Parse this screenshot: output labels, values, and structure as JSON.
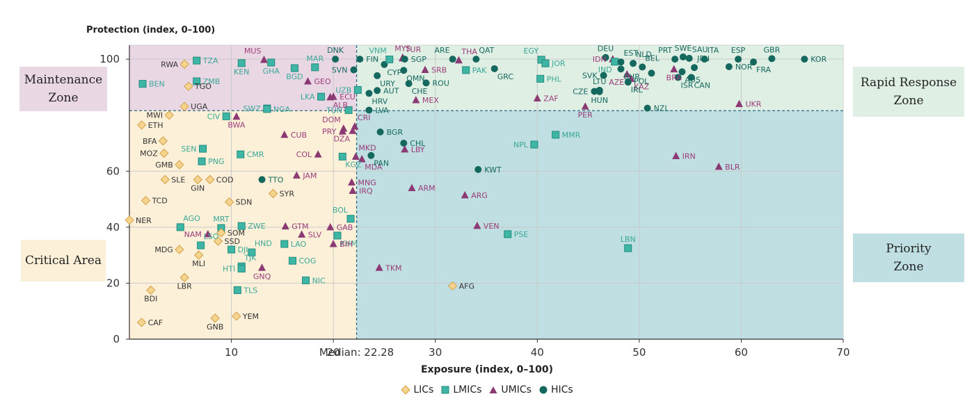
{
  "chart_data": {
    "type": "scatter",
    "xlabel": "Exposure (index, 0–100)",
    "ylabel": "Protection (index, 0–100)",
    "xlim": [
      0,
      70
    ],
    "ylim": [
      0,
      105
    ],
    "x_ticks": [
      10,
      20,
      30,
      40,
      50,
      60,
      70
    ],
    "y_ticks": [
      0,
      20,
      40,
      60,
      100
    ],
    "median_x": 22.28,
    "median_label": "Median: 22.28",
    "horizontal_threshold": 81.6,
    "zones": [
      {
        "id": "maint",
        "label": "Maintenance\nZone",
        "color": "#ead7e4"
      },
      {
        "id": "rapid",
        "label": "Rapid Response\nZone",
        "color": "#e0efe4"
      },
      {
        "id": "crit",
        "label": "Critical Area",
        "color": "#fdf0d8"
      },
      {
        "id": "prio",
        "label": "Priority\nZone",
        "color": "#bfdfe2"
      }
    ],
    "groups": [
      {
        "key": "LIC",
        "name": "LICs",
        "marker": "diamond",
        "fill": "#f5d58e",
        "stroke": "#d3a04a",
        "text": "#333333"
      },
      {
        "key": "LMIC",
        "name": "LMICs",
        "marker": "square",
        "fill": "#3fb5a5",
        "stroke": "#1f8c7e",
        "text": "#3aa898"
      },
      {
        "key": "UMIC",
        "name": "UMICs",
        "marker": "triangle",
        "fill": "#8c3a73",
        "stroke": "#8c3a73",
        "text": "#9a3c7a"
      },
      {
        "key": "HIC",
        "name": "HICs",
        "marker": "circle",
        "fill": "#14685e",
        "stroke": "#14685e",
        "text": "#14685e"
      }
    ],
    "points": [
      {
        "code": "RWA",
        "g": "LIC",
        "x": 5.4,
        "y": 98.2,
        "lp": "l"
      },
      {
        "code": "TZA",
        "g": "LMIC",
        "x": 6.6,
        "y": 99.5,
        "lp": "r"
      },
      {
        "code": "BEN",
        "g": "LMIC",
        "x": 1.3,
        "y": 91.2,
        "lp": "r"
      },
      {
        "code": "ZMB",
        "g": "LMIC",
        "x": 6.6,
        "y": 92.1,
        "lp": "r"
      },
      {
        "code": "TGO",
        "g": "LIC",
        "x": 5.8,
        "y": 90.3,
        "lp": "r"
      },
      {
        "code": "UGA",
        "g": "LIC",
        "x": 5.4,
        "y": 83.1,
        "lp": "r"
      },
      {
        "code": "MWI",
        "g": "LIC",
        "x": 3.9,
        "y": 80.0,
        "lp": "l"
      },
      {
        "code": "MUS",
        "g": "UMIC",
        "x": 13.2,
        "y": 99.8,
        "lp": "tl"
      },
      {
        "code": "KEN",
        "g": "LMIC",
        "x": 11.0,
        "y": 98.6,
        "lp": "b"
      },
      {
        "code": "GHA",
        "g": "LMIC",
        "x": 13.9,
        "y": 98.8,
        "lp": "b"
      },
      {
        "code": "BGD",
        "g": "LMIC",
        "x": 16.2,
        "y": 96.8,
        "lp": "b"
      },
      {
        "code": "MAR",
        "g": "LMIC",
        "x": 18.2,
        "y": 97.1,
        "lp": "t"
      },
      {
        "code": "GEO",
        "g": "UMIC",
        "x": 17.5,
        "y": 92.1,
        "lp": "r"
      },
      {
        "code": "SWZ",
        "g": "LMIC",
        "x": 13.5,
        "y": 82.4,
        "lp": "l"
      },
      {
        "code": "NGA",
        "g": "LMIC",
        "x": 13.5,
        "y": 82.2,
        "lp": "r"
      },
      {
        "code": "LKA",
        "g": "LMIC",
        "x": 18.8,
        "y": 86.6,
        "lp": "l"
      },
      {
        "code": "ECU",
        "g": "UMIC",
        "x": 20.0,
        "y": 86.6,
        "lp": "r"
      },
      {
        "code": "ALB",
        "g": "UMIC",
        "x": 19.7,
        "y": 86.4,
        "lp": "br"
      },
      {
        "code": "DNK",
        "g": "HIC",
        "x": 20.2,
        "y": 100.0,
        "lp": "t"
      },
      {
        "code": "SVN",
        "g": "HIC",
        "x": 22.0,
        "y": 96.2,
        "lp": "l"
      },
      {
        "code": "UZB",
        "g": "LMIC",
        "x": 22.4,
        "y": 89.0,
        "lp": "l"
      },
      {
        "code": "FIN",
        "g": "HIC",
        "x": 22.6,
        "y": 100.0,
        "lp": "r"
      },
      {
        "code": "TUN",
        "g": "LMIC",
        "x": 21.5,
        "y": 81.8,
        "lp": "l"
      },
      {
        "code": "LVA",
        "g": "HIC",
        "x": 23.5,
        "y": 81.8,
        "lp": "r"
      },
      {
        "code": "HRV",
        "g": "HIC",
        "x": 23.5,
        "y": 87.8,
        "lp": "br"
      },
      {
        "code": "AUT",
        "g": "HIC",
        "x": 24.3,
        "y": 88.8,
        "lp": "r"
      },
      {
        "code": "URY",
        "g": "HIC",
        "x": 24.3,
        "y": 94.1,
        "lp": "br"
      },
      {
        "code": "CYP",
        "g": "HIC",
        "x": 25.0,
        "y": 98.1,
        "lp": "br"
      },
      {
        "code": "VNM",
        "g": "LMIC",
        "x": 25.5,
        "y": 99.9,
        "lp": "tl"
      },
      {
        "code": "MYS",
        "g": "UMIC",
        "x": 26.8,
        "y": 100.6,
        "lp": "t"
      },
      {
        "code": "TUR",
        "g": "UMIC",
        "x": 26.8,
        "y": 100.3,
        "lp": "tr"
      },
      {
        "code": "SGP",
        "g": "HIC",
        "x": 27.0,
        "y": 100.0,
        "lp": "r"
      },
      {
        "code": "OMN",
        "g": "HIC",
        "x": 26.9,
        "y": 96.0,
        "lp": "br"
      },
      {
        "code": "CHE",
        "g": "HIC",
        "x": 27.4,
        "y": 91.3,
        "lp": "br"
      },
      {
        "code": "ROU",
        "g": "HIC",
        "x": 29.1,
        "y": 91.5,
        "lp": "r"
      },
      {
        "code": "SRB",
        "g": "UMIC",
        "x": 29.0,
        "y": 96.2,
        "lp": "r"
      },
      {
        "code": "MEX",
        "g": "UMIC",
        "x": 28.1,
        "y": 85.4,
        "lp": "r"
      },
      {
        "code": "ARE",
        "g": "HIC",
        "x": 31.7,
        "y": 100.0,
        "lp": "tl"
      },
      {
        "code": "THA",
        "g": "UMIC",
        "x": 32.3,
        "y": 99.6,
        "lp": "tr"
      },
      {
        "code": "QAT",
        "g": "HIC",
        "x": 34.0,
        "y": 100.0,
        "lp": "tr"
      },
      {
        "code": "PAK",
        "g": "LMIC",
        "x": 33.0,
        "y": 96.1,
        "lp": "r"
      },
      {
        "code": "GRC",
        "g": "HIC",
        "x": 35.8,
        "y": 96.6,
        "lp": "br"
      },
      {
        "code": "EGY",
        "g": "LMIC",
        "x": 40.4,
        "y": 99.8,
        "lp": "tl"
      },
      {
        "code": "JOR",
        "g": "LMIC",
        "x": 40.8,
        "y": 98.5,
        "lp": "r"
      },
      {
        "code": "PHL",
        "g": "LMIC",
        "x": 40.3,
        "y": 93.0,
        "lp": "r"
      },
      {
        "code": "ZAF",
        "g": "UMIC",
        "x": 40.0,
        "y": 86.0,
        "lp": "r"
      },
      {
        "code": "DOM",
        "g": "UMIC",
        "x": 21.0,
        "y": 75.2,
        "lp": "tl"
      },
      {
        "code": "CRI",
        "g": "UMIC",
        "x": 22.1,
        "y": 76.0,
        "lp": "tr"
      },
      {
        "code": "PRY",
        "g": "UMIC",
        "x": 20.9,
        "y": 74.2,
        "lp": "l"
      },
      {
        "code": "DZA",
        "g": "UMIC",
        "x": 21.9,
        "y": 74.4,
        "lp": "bl"
      },
      {
        "code": "KGZ",
        "g": "LMIC",
        "x": 20.9,
        "y": 65.2,
        "lp": "br"
      },
      {
        "code": "MKD",
        "g": "UMIC",
        "x": 22.2,
        "y": 65.2,
        "lp": "tr"
      },
      {
        "code": "MDA",
        "g": "UMIC",
        "x": 22.8,
        "y": 64.3,
        "lp": "br"
      },
      {
        "code": "PAN",
        "g": "HIC",
        "x": 23.7,
        "y": 65.6,
        "lp": "br"
      },
      {
        "code": "BGR",
        "g": "HIC",
        "x": 24.6,
        "y": 74.0,
        "lp": "r"
      },
      {
        "code": "CHL",
        "g": "HIC",
        "x": 26.9,
        "y": 70.0,
        "lp": "r"
      },
      {
        "code": "LBY",
        "g": "UMIC",
        "x": 27.0,
        "y": 67.8,
        "lp": "r"
      },
      {
        "code": "MNG",
        "g": "UMIC",
        "x": 21.8,
        "y": 56.0,
        "lp": "r"
      },
      {
        "code": "IRQ",
        "g": "UMIC",
        "x": 21.9,
        "y": 53.0,
        "lp": "r"
      },
      {
        "code": "ARM",
        "g": "UMIC",
        "x": 27.7,
        "y": 54.0,
        "lp": "r"
      },
      {
        "code": "ARG",
        "g": "UMIC",
        "x": 32.9,
        "y": 51.4,
        "lp": "r"
      },
      {
        "code": "KWT",
        "g": "HIC",
        "x": 34.2,
        "y": 60.6,
        "lp": "r"
      },
      {
        "code": "NPL",
        "g": "LMIC",
        "x": 39.7,
        "y": 69.5,
        "lp": "l"
      },
      {
        "code": "MMR",
        "g": "LMIC",
        "x": 41.8,
        "y": 73.0,
        "lp": "r"
      },
      {
        "code": "IRN",
        "g": "UMIC",
        "x": 53.6,
        "y": 65.4,
        "lp": "r"
      },
      {
        "code": "BLR",
        "g": "UMIC",
        "x": 57.8,
        "y": 61.6,
        "lp": "r"
      },
      {
        "code": "BOL",
        "g": "LMIC",
        "x": 21.7,
        "y": 43.0,
        "lp": "tl"
      },
      {
        "code": "GAB",
        "g": "UMIC",
        "x": 19.7,
        "y": 40.0,
        "lp": "r"
      },
      {
        "code": "KHM",
        "g": "LMIC",
        "x": 20.4,
        "y": 37.0,
        "lp": "br"
      },
      {
        "code": "BIH",
        "g": "UMIC",
        "x": 20.0,
        "y": 34.0,
        "lp": "r"
      },
      {
        "code": "VEN",
        "g": "UMIC",
        "x": 34.1,
        "y": 40.5,
        "lp": "r"
      },
      {
        "code": "PSE",
        "g": "LMIC",
        "x": 37.1,
        "y": 37.5,
        "lp": "r"
      },
      {
        "code": "LBN",
        "g": "LMIC",
        "x": 48.9,
        "y": 32.5,
        "lp": "t"
      },
      {
        "code": "TKM",
        "g": "UMIC",
        "x": 24.5,
        "y": 25.5,
        "lp": "r"
      },
      {
        "code": "AFG",
        "g": "LIC",
        "x": 31.7,
        "y": 19.0,
        "lp": "r"
      },
      {
        "code": "ETH",
        "g": "LIC",
        "x": 1.2,
        "y": 76.5,
        "lp": "r"
      },
      {
        "code": "BFA",
        "g": "LIC",
        "x": 3.3,
        "y": 70.8,
        "lp": "l"
      },
      {
        "code": "MOZ",
        "g": "LIC",
        "x": 3.4,
        "y": 66.4,
        "lp": "l"
      },
      {
        "code": "GMB",
        "g": "LIC",
        "x": 4.9,
        "y": 62.3,
        "lp": "l"
      },
      {
        "code": "SLE",
        "g": "LIC",
        "x": 3.5,
        "y": 57.0,
        "lp": "r"
      },
      {
        "code": "GIN",
        "g": "LIC",
        "x": 6.7,
        "y": 57.0,
        "lp": "b"
      },
      {
        "code": "COD",
        "g": "LIC",
        "x": 7.9,
        "y": 57.0,
        "lp": "r"
      },
      {
        "code": "TCD",
        "g": "LIC",
        "x": 1.6,
        "y": 49.5,
        "lp": "r"
      },
      {
        "code": "SDN",
        "g": "LIC",
        "x": 9.8,
        "y": 49.0,
        "lp": "r"
      },
      {
        "code": "SYR",
        "g": "LIC",
        "x": 14.1,
        "y": 52.0,
        "lp": "r"
      },
      {
        "code": "NER",
        "g": "LIC",
        "x": 0.0,
        "y": 42.5,
        "lp": "r"
      },
      {
        "code": "AGO",
        "g": "LMIC",
        "x": 5.0,
        "y": 40.0,
        "lp": "tr"
      },
      {
        "code": "MRT",
        "g": "LMIC",
        "x": 9.0,
        "y": 39.7,
        "lp": "t"
      },
      {
        "code": "ZWE",
        "g": "LMIC",
        "x": 11.0,
        "y": 40.4,
        "lp": "r"
      },
      {
        "code": "SOM",
        "g": "LIC",
        "x": 9.0,
        "y": 38.0,
        "lp": "r"
      },
      {
        "code": "NAM",
        "g": "UMIC",
        "x": 7.7,
        "y": 37.5,
        "lp": "l"
      },
      {
        "code": "SSD",
        "g": "LIC",
        "x": 8.7,
        "y": 35.0,
        "lp": "r"
      },
      {
        "code": "MDG",
        "g": "LIC",
        "x": 4.9,
        "y": 32.0,
        "lp": "l"
      },
      {
        "code": "MLI",
        "g": "LIC",
        "x": 6.8,
        "y": 30.0,
        "lp": "b"
      },
      {
        "code": "LSO",
        "g": "LMIC",
        "x": 7.0,
        "y": 33.5,
        "lp": "tr"
      },
      {
        "code": "DJI",
        "g": "LMIC",
        "x": 10.0,
        "y": 32.0,
        "lp": "r"
      },
      {
        "code": "HND",
        "g": "LMIC",
        "x": 12.0,
        "y": 31.0,
        "lp": "tr"
      },
      {
        "code": "TJK",
        "g": "LMIC",
        "x": 11.0,
        "y": 26.0,
        "lp": "tr"
      },
      {
        "code": "HTI",
        "g": "LMIC",
        "x": 11.0,
        "y": 25.2,
        "lp": "l"
      },
      {
        "code": "GNQ",
        "g": "UMIC",
        "x": 13.0,
        "y": 25.5,
        "lp": "b"
      },
      {
        "code": "GTM",
        "g": "UMIC",
        "x": 15.3,
        "y": 40.3,
        "lp": "r"
      },
      {
        "code": "SLV",
        "g": "UMIC",
        "x": 16.9,
        "y": 37.4,
        "lp": "r"
      },
      {
        "code": "LAO",
        "g": "LMIC",
        "x": 15.2,
        "y": 34.0,
        "lp": "r"
      },
      {
        "code": "COG",
        "g": "LMIC",
        "x": 16.0,
        "y": 28.0,
        "lp": "r"
      },
      {
        "code": "NIC",
        "g": "LMIC",
        "x": 17.3,
        "y": 21.0,
        "lp": "r"
      },
      {
        "code": "LBR",
        "g": "LIC",
        "x": 5.4,
        "y": 22.0,
        "lp": "b"
      },
      {
        "code": "BDI",
        "g": "LIC",
        "x": 2.1,
        "y": 17.5,
        "lp": "b"
      },
      {
        "code": "TLS",
        "g": "LMIC",
        "x": 10.6,
        "y": 17.5,
        "lp": "r"
      },
      {
        "code": "CAF",
        "g": "LIC",
        "x": 1.2,
        "y": 6.0,
        "lp": "r"
      },
      {
        "code": "GNB",
        "g": "LIC",
        "x": 8.4,
        "y": 7.5,
        "lp": "b"
      },
      {
        "code": "YEM",
        "g": "LIC",
        "x": 10.5,
        "y": 8.2,
        "lp": "r"
      },
      {
        "code": "CIV",
        "g": "LMIC",
        "x": 9.5,
        "y": 79.6,
        "lp": "l"
      },
      {
        "code": "BWA",
        "g": "UMIC",
        "x": 10.5,
        "y": 79.5,
        "lp": "b"
      },
      {
        "code": "CUB",
        "g": "UMIC",
        "x": 15.2,
        "y": 73.0,
        "lp": "r"
      },
      {
        "code": "COL",
        "g": "UMIC",
        "x": 18.5,
        "y": 66.0,
        "lp": "l"
      },
      {
        "code": "JAM",
        "g": "UMIC",
        "x": 16.4,
        "y": 58.5,
        "lp": "r"
      },
      {
        "code": "SEN",
        "g": "LMIC",
        "x": 7.2,
        "y": 68.0,
        "lp": "l"
      },
      {
        "code": "PNG",
        "g": "LMIC",
        "x": 7.1,
        "y": 63.5,
        "lp": "r"
      },
      {
        "code": "CMR",
        "g": "LMIC",
        "x": 10.9,
        "y": 66.0,
        "lp": "r"
      },
      {
        "code": "TTO",
        "g": "HIC",
        "x": 13.0,
        "y": 57.0,
        "lp": "r"
      },
      {
        "code": "DEU",
        "g": "HIC",
        "x": 46.7,
        "y": 100.6,
        "lp": "t"
      },
      {
        "code": "IDN",
        "g": "UMIC",
        "x": 47.4,
        "y": 100.0,
        "lp": "l"
      },
      {
        "code": "IND",
        "g": "LMIC",
        "x": 47.6,
        "y": 99.1,
        "lp": "bl"
      },
      {
        "code": "EST",
        "g": "HIC",
        "x": 48.2,
        "y": 99.0,
        "lp": "tr"
      },
      {
        "code": "NLD",
        "g": "HIC",
        "x": 49.4,
        "y": 98.5,
        "lp": "tr"
      },
      {
        "code": "BHR",
        "g": "HIC",
        "x": 48.2,
        "y": 96.5,
        "lp": "br"
      },
      {
        "code": "SVK",
        "g": "HIC",
        "x": 46.5,
        "y": 94.2,
        "lp": "l"
      },
      {
        "code": "AZE",
        "g": "UMIC",
        "x": 48.8,
        "y": 94.6,
        "lp": "bl"
      },
      {
        "code": "KAZ",
        "g": "UMIC",
        "x": 49.2,
        "y": 93.0,
        "lp": "br"
      },
      {
        "code": "CZE",
        "g": "HIC",
        "x": 45.6,
        "y": 88.5,
        "lp": "l"
      },
      {
        "code": "LTU",
        "g": "HIC",
        "x": 46.1,
        "y": 88.9,
        "lp": "t"
      },
      {
        "code": "HUN",
        "g": "HIC",
        "x": 46.1,
        "y": 88.4,
        "lp": "b"
      },
      {
        "code": "IRL",
        "g": "HIC",
        "x": 48.9,
        "y": 91.8,
        "lp": "br"
      },
      {
        "code": "PER",
        "g": "UMIC",
        "x": 44.7,
        "y": 83.1,
        "lp": "b"
      },
      {
        "code": "NZL",
        "g": "HIC",
        "x": 50.8,
        "y": 82.5,
        "lp": "r"
      },
      {
        "code": "BEL",
        "g": "HIC",
        "x": 50.3,
        "y": 97.2,
        "lp": "tr"
      },
      {
        "code": "POL",
        "g": "HIC",
        "x": 51.2,
        "y": 95.0,
        "lp": "bl"
      },
      {
        "code": "BRA",
        "g": "UMIC",
        "x": 53.4,
        "y": 96.4,
        "lp": "b"
      },
      {
        "code": "PRT",
        "g": "HIC",
        "x": 53.5,
        "y": 100.0,
        "lp": "tl"
      },
      {
        "code": "SWE",
        "g": "HIC",
        "x": 54.3,
        "y": 100.8,
        "lp": "t"
      },
      {
        "code": "SAU",
        "g": "HIC",
        "x": 54.9,
        "y": 100.3,
        "lp": "tr"
      },
      {
        "code": "ISR",
        "g": "HIC",
        "x": 53.8,
        "y": 93.5,
        "lp": "br"
      },
      {
        "code": "CAN",
        "g": "HIC",
        "x": 55.1,
        "y": 93.5,
        "lp": "br"
      },
      {
        "code": "AUS",
        "g": "HIC",
        "x": 54.2,
        "y": 95.5,
        "lp": "br"
      },
      {
        "code": "JPN",
        "g": "HIC",
        "x": 55.4,
        "y": 97.0,
        "lp": "tr"
      },
      {
        "code": "ITA",
        "g": "HIC",
        "x": 56.4,
        "y": 100.0,
        "lp": "tr"
      },
      {
        "code": "ESP",
        "g": "HIC",
        "x": 59.7,
        "y": 100.0,
        "lp": "t"
      },
      {
        "code": "NOR",
        "g": "HIC",
        "x": 58.8,
        "y": 97.3,
        "lp": "r"
      },
      {
        "code": "GBR",
        "g": "HIC",
        "x": 63.0,
        "y": 100.2,
        "lp": "t"
      },
      {
        "code": "FRA",
        "g": "HIC",
        "x": 61.2,
        "y": 99.0,
        "lp": "br"
      },
      {
        "code": "KOR",
        "g": "HIC",
        "x": 66.2,
        "y": 100.0,
        "lp": "r"
      },
      {
        "code": "UKR",
        "g": "UMIC",
        "x": 59.8,
        "y": 84.0,
        "lp": "r"
      }
    ]
  }
}
